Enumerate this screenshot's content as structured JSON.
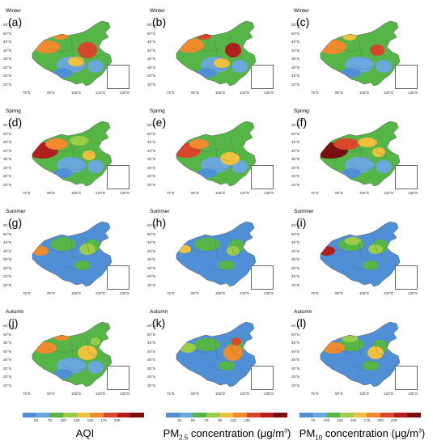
{
  "panels": [
    {
      "season": "Winter",
      "label": "(a)"
    },
    {
      "season": "Winter",
      "label": "(b)"
    },
    {
      "season": "Winter",
      "label": "(c)"
    },
    {
      "season": "Spring",
      "label": "(d)"
    },
    {
      "season": "Spring",
      "label": "(e)"
    },
    {
      "season": "Spring",
      "label": "(f)"
    },
    {
      "season": "Summer",
      "label": "(g)"
    },
    {
      "season": "Summer",
      "label": "(h)"
    },
    {
      "season": "Summer",
      "label": "(i)"
    },
    {
      "season": "Autumn",
      "label": "(j)"
    },
    {
      "season": "Autumn",
      "label": "(k)"
    },
    {
      "season": "Autumn",
      "label": "(l)"
    }
  ],
  "lat_ticks": [
    "55°N",
    "50°N",
    "45°N",
    "40°N",
    "35°N",
    "30°N",
    "25°N",
    "20°N"
  ],
  "lon_ticks": [
    "75°E",
    "90°E",
    "105°E",
    "120°E",
    "135°E"
  ],
  "legends": [
    {
      "ticks": [
        "50",
        "75",
        "100",
        "125",
        "150",
        "175",
        "200"
      ],
      "colors": [
        "#4f8fd6",
        "#6aa7dd",
        "#55b547",
        "#9acc48",
        "#f0c13c",
        "#ef8a2d",
        "#d9472a",
        "#b01e1e",
        "#7a0f0f"
      ]
    },
    {
      "ticks": [
        "35",
        "55",
        "75",
        "95",
        "115",
        "135"
      ],
      "colors": [
        "#4f8fd6",
        "#6aa7dd",
        "#55b547",
        "#9acc48",
        "#f0c13c",
        "#ef8a2d",
        "#d9472a",
        "#b01e1e",
        "#7a0f0f"
      ]
    },
    {
      "ticks": [
        "75",
        "100",
        "125",
        "150",
        "175",
        "200",
        "225"
      ],
      "colors": [
        "#4f8fd6",
        "#6aa7dd",
        "#55b547",
        "#9acc48",
        "#f0c13c",
        "#ef8a2d",
        "#d9472a",
        "#b01e1e",
        "#7a0f0f"
      ]
    }
  ],
  "captions": {
    "c1": "AQI",
    "c2_pre": "PM",
    "c2_sub": "2.5",
    "c2_post": " concentration (μg/m",
    "c2_sup": "3",
    "c2_end": ")",
    "c3_pre": "PM",
    "c3_sub": "10",
    "c3_post": " concentration (μg/m",
    "c3_sup": "3",
    "c3_end": ")"
  }
}
